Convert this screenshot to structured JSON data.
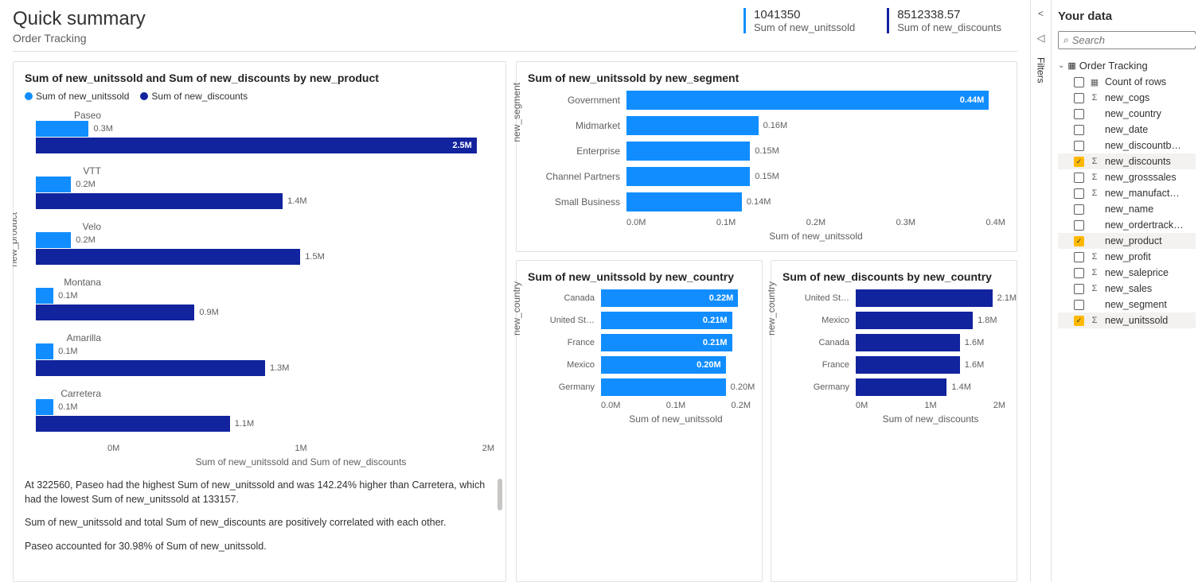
{
  "header": {
    "title": "Quick summary",
    "subtitle": "Order Tracking"
  },
  "kpis": [
    {
      "value": "1041350",
      "label": "Sum of new_unitssold",
      "accent": "#118dff"
    },
    {
      "value": "8512338.57",
      "label": "Sum of new_discounts",
      "accent": "#12239e"
    }
  ],
  "filters_label": "Filters",
  "charts": {
    "product": {
      "title": "Sum of new_unitssold and Sum of new_discounts by new_product",
      "legend": [
        {
          "label": "Sum of new_unitssold",
          "color": "#118dff"
        },
        {
          "label": "Sum of new_discounts",
          "color": "#12239e"
        }
      ],
      "y_axis": "new_product",
      "x_axis": "Sum of new_unitssold and Sum of new_discounts",
      "x_ticks": [
        "0M",
        "1M",
        "2M"
      ],
      "max": 2.6,
      "rows": [
        {
          "cat": "Paseo",
          "a": 0.3,
          "a_label": "0.3M",
          "b": 2.5,
          "b_label": "2.5M",
          "b_inside": true
        },
        {
          "cat": "VTT",
          "a": 0.2,
          "a_label": "0.2M",
          "b": 1.4,
          "b_label": "1.4M"
        },
        {
          "cat": "Velo",
          "a": 0.2,
          "a_label": "0.2M",
          "b": 1.5,
          "b_label": "1.5M"
        },
        {
          "cat": "Montana",
          "a": 0.1,
          "a_label": "0.1M",
          "b": 0.9,
          "b_label": "0.9M"
        },
        {
          "cat": "Amarilla",
          "a": 0.1,
          "a_label": "0.1M",
          "b": 1.3,
          "b_label": "1.3M"
        },
        {
          "cat": "Carretera",
          "a": 0.1,
          "a_label": "0.1M",
          "b": 1.1,
          "b_label": "1.1M"
        }
      ],
      "insights": [
        "At 322560, Paseo had the highest Sum of new_unitssold and was 142.24% higher than Carretera, which had the lowest Sum of new_unitssold at 133157.",
        "Sum of new_unitssold and total Sum of new_discounts are positively correlated with each other.",
        "Paseo accounted for 30.98% of Sum of new_unitssold."
      ]
    },
    "segment": {
      "title": "Sum of new_unitssold by new_segment",
      "y_axis": "new_segment",
      "x_axis": "Sum of new_unitssold",
      "x_ticks": [
        "0.0M",
        "0.1M",
        "0.2M",
        "0.3M",
        "0.4M"
      ],
      "color": "#118dff",
      "max": 0.46,
      "rows": [
        {
          "cat": "Government",
          "v": 0.44,
          "label": "0.44M",
          "inside": true
        },
        {
          "cat": "Midmarket",
          "v": 0.16,
          "label": "0.16M"
        },
        {
          "cat": "Enterprise",
          "v": 0.15,
          "label": "0.15M"
        },
        {
          "cat": "Channel Partners",
          "v": 0.15,
          "label": "0.15M"
        },
        {
          "cat": "Small Business",
          "v": 0.14,
          "label": "0.14M"
        }
      ]
    },
    "units_country": {
      "title": "Sum of new_unitssold by new_country",
      "y_axis": "new_country",
      "x_axis": "Sum of new_unitssold",
      "x_ticks": [
        "0.0M",
        "0.1M",
        "0.2M"
      ],
      "color": "#118dff",
      "max": 0.24,
      "rows": [
        {
          "cat": "Canada",
          "v": 0.22,
          "label": "0.22M",
          "inside": true
        },
        {
          "cat": "United St…",
          "v": 0.21,
          "label": "0.21M",
          "inside": true
        },
        {
          "cat": "France",
          "v": 0.21,
          "label": "0.21M",
          "inside": true
        },
        {
          "cat": "Mexico",
          "v": 0.2,
          "label": "0.20M",
          "inside": true
        },
        {
          "cat": "Germany",
          "v": 0.2,
          "label": "0.20M"
        }
      ]
    },
    "disc_country": {
      "title": "Sum of new_discounts by new_country",
      "y_axis": "new_country",
      "x_axis": "Sum of new_discounts",
      "x_ticks": [
        "0M",
        "1M",
        "2M"
      ],
      "color": "#12239e",
      "max": 2.3,
      "rows": [
        {
          "cat": "United St…",
          "v": 2.1,
          "label": "2.1M"
        },
        {
          "cat": "Mexico",
          "v": 1.8,
          "label": "1.8M"
        },
        {
          "cat": "Canada",
          "v": 1.6,
          "label": "1.6M"
        },
        {
          "cat": "France",
          "v": 1.6,
          "label": "1.6M"
        },
        {
          "cat": "Germany",
          "v": 1.4,
          "label": "1.4M"
        }
      ]
    }
  },
  "data_pane": {
    "title": "Your data",
    "search_placeholder": "Search",
    "table_name": "Order Tracking",
    "fields": [
      {
        "name": "Count of rows",
        "icon": "table",
        "checked": false
      },
      {
        "name": "new_cogs",
        "icon": "sigma",
        "checked": false
      },
      {
        "name": "new_country",
        "icon": "",
        "checked": false
      },
      {
        "name": "new_date",
        "icon": "",
        "checked": false
      },
      {
        "name": "new_discountb…",
        "icon": "",
        "checked": false
      },
      {
        "name": "new_discounts",
        "icon": "sigma",
        "checked": true
      },
      {
        "name": "new_grosssales",
        "icon": "sigma",
        "checked": false
      },
      {
        "name": "new_manufact…",
        "icon": "sigma",
        "checked": false
      },
      {
        "name": "new_name",
        "icon": "",
        "checked": false
      },
      {
        "name": "new_ordertrack…",
        "icon": "",
        "checked": false
      },
      {
        "name": "new_product",
        "icon": "",
        "checked": true
      },
      {
        "name": "new_profit",
        "icon": "sigma",
        "checked": false
      },
      {
        "name": "new_saleprice",
        "icon": "sigma",
        "checked": false
      },
      {
        "name": "new_sales",
        "icon": "sigma",
        "checked": false
      },
      {
        "name": "new_segment",
        "icon": "",
        "checked": false
      },
      {
        "name": "new_unitssold",
        "icon": "sigma",
        "checked": true
      }
    ]
  }
}
